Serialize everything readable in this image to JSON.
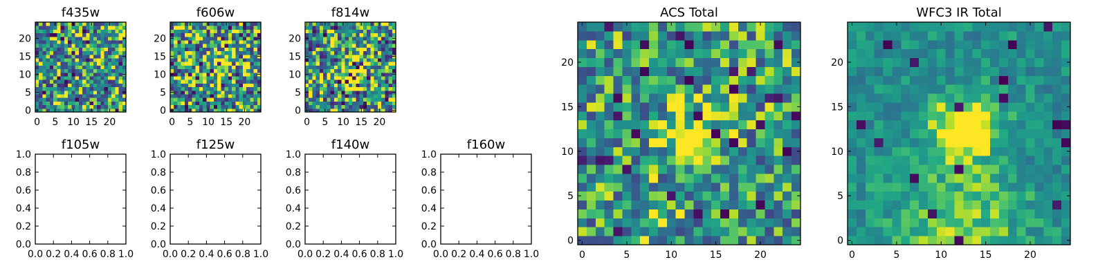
{
  "chart_data": [
    {
      "type": "heatmap",
      "title": "f435w",
      "grid_size": 25,
      "cmap": "viridis",
      "xlim": [
        -0.5,
        24.5
      ],
      "ylim": [
        -0.5,
        24.5
      ],
      "xticks": [
        0,
        5,
        10,
        15,
        20
      ],
      "yticks": [
        0,
        5,
        10,
        15,
        20
      ],
      "pattern": {
        "noise": 0.55,
        "low_fraction": 0.03,
        "blobs": [],
        "seed": 11
      }
    },
    {
      "type": "heatmap",
      "title": "f606w",
      "grid_size": 25,
      "cmap": "viridis",
      "xlim": [
        -0.5,
        24.5
      ],
      "ylim": [
        -0.5,
        24.5
      ],
      "xticks": [
        0,
        5,
        10,
        15,
        20
      ],
      "yticks": [
        0,
        5,
        10,
        15,
        20
      ],
      "pattern": {
        "noise": 0.6,
        "low_fraction": 0.05,
        "blobs": [
          {
            "x": 12,
            "y": 12,
            "sigma": 3,
            "amp": 0.35
          }
        ],
        "seed": 23
      }
    },
    {
      "type": "heatmap",
      "title": "f814w",
      "grid_size": 25,
      "cmap": "viridis",
      "xlim": [
        -0.5,
        24.5
      ],
      "ylim": [
        -0.5,
        24.5
      ],
      "xticks": [
        0,
        5,
        10,
        15,
        20
      ],
      "yticks": [
        0,
        5,
        10,
        15,
        20
      ],
      "pattern": {
        "noise": 0.6,
        "low_fraction": 0.05,
        "blobs": [
          {
            "x": 12,
            "y": 11,
            "sigma": 3,
            "amp": 0.35
          }
        ],
        "seed": 37
      }
    },
    {
      "type": "empty",
      "title": "f105w",
      "xlim": [
        0,
        1
      ],
      "ylim": [
        0,
        1
      ],
      "xticks": [
        0.0,
        0.2,
        0.4,
        0.6,
        0.8,
        1.0
      ],
      "yticks": [
        0.0,
        0.2,
        0.4,
        0.6,
        0.8,
        1.0
      ]
    },
    {
      "type": "empty",
      "title": "f125w",
      "xlim": [
        0,
        1
      ],
      "ylim": [
        0,
        1
      ],
      "xticks": [
        0.0,
        0.2,
        0.4,
        0.6,
        0.8,
        1.0
      ],
      "yticks": [
        0.0,
        0.2,
        0.4,
        0.6,
        0.8,
        1.0
      ]
    },
    {
      "type": "empty",
      "title": "f140w",
      "xlim": [
        0,
        1
      ],
      "ylim": [
        0,
        1
      ],
      "xticks": [
        0.0,
        0.2,
        0.4,
        0.6,
        0.8,
        1.0
      ],
      "yticks": [
        0.0,
        0.2,
        0.4,
        0.6,
        0.8,
        1.0
      ]
    },
    {
      "type": "empty",
      "title": "f160w",
      "xlim": [
        0,
        1
      ],
      "ylim": [
        0,
        1
      ],
      "xticks": [
        0.0,
        0.2,
        0.4,
        0.6,
        0.8,
        1.0
      ],
      "yticks": [
        0.0,
        0.2,
        0.4,
        0.6,
        0.8,
        1.0
      ]
    },
    {
      "type": "heatmap",
      "title": "ACS Total",
      "grid_size": 25,
      "cmap": "viridis",
      "xlim": [
        -0.5,
        24.5
      ],
      "ylim": [
        -0.5,
        24.5
      ],
      "xticks": [
        0,
        5,
        10,
        15,
        20
      ],
      "yticks": [
        0,
        5,
        10,
        15,
        20
      ],
      "pattern": {
        "noise": 0.45,
        "low_fraction": 0.04,
        "blobs": [
          {
            "x": 12.5,
            "y": 12,
            "sigma": 2.5,
            "amp": 0.45
          },
          {
            "x": 8,
            "y": 3,
            "sigma": 1.5,
            "amp": 0.25
          }
        ],
        "seed": 53
      }
    },
    {
      "type": "heatmap",
      "title": "WFC3 IR Total",
      "grid_size": 25,
      "cmap": "viridis",
      "xlim": [
        -0.5,
        24.5
      ],
      "ylim": [
        -0.5,
        24.5
      ],
      "xticks": [
        0,
        5,
        10,
        15,
        20
      ],
      "yticks": [
        0,
        5,
        10,
        15,
        20
      ],
      "pattern": {
        "noise": 0.2,
        "low_fraction": 0.03,
        "blobs": [
          {
            "x": 12.5,
            "y": 12.5,
            "sigma": 2.5,
            "amp": 0.55
          },
          {
            "x": 12,
            "y": 1.5,
            "sigma": 5,
            "amp": 0.25
          }
        ],
        "seed": 71
      }
    }
  ]
}
